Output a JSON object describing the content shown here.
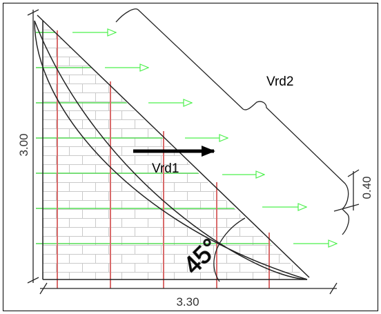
{
  "labels": {
    "height": "3.00",
    "base": "3.30",
    "spacing": "0.40",
    "resultant": "Vrd1",
    "total": "Vrd2",
    "angle": "45°"
  },
  "colors": {
    "outline": "#222222",
    "brick": "#c9c9c9",
    "horizontal_rebar": "#55dd55",
    "vertical_rebar": "#d96b6b",
    "load_arrow": "#4cf04c",
    "resultant_arrow": "#000000"
  }
}
